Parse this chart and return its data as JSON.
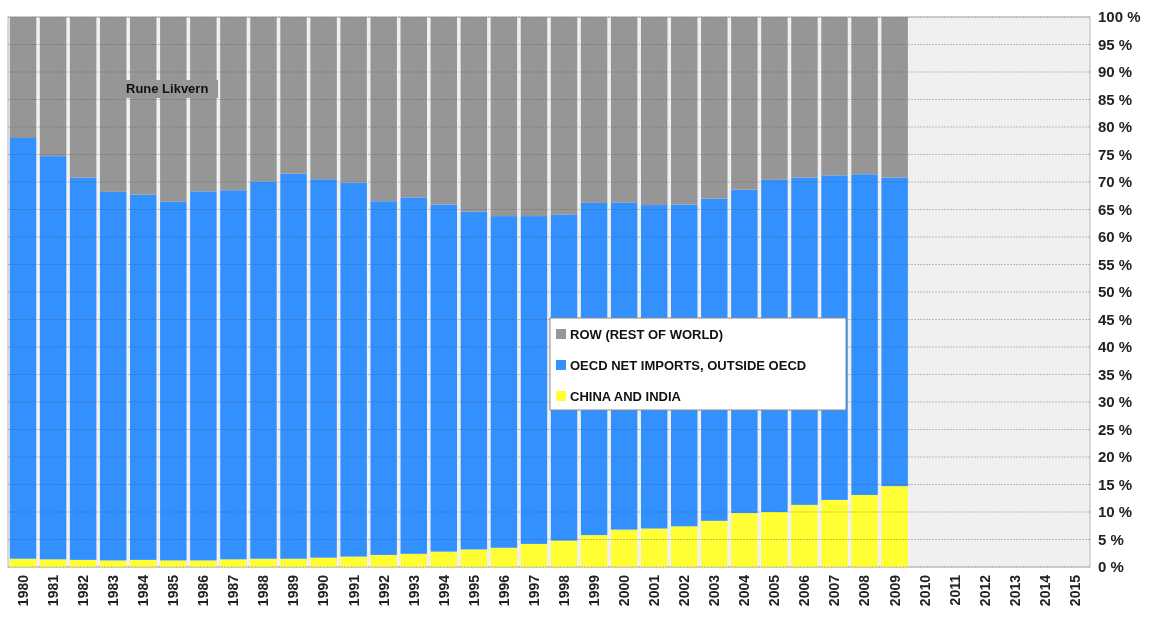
{
  "chart_data": {
    "type": "bar",
    "stacked": true,
    "categories": [
      "1980",
      "1981",
      "1982",
      "1983",
      "1984",
      "1985",
      "1986",
      "1987",
      "1988",
      "1989",
      "1990",
      "1991",
      "1992",
      "1993",
      "1994",
      "1995",
      "1996",
      "1997",
      "1998",
      "1999",
      "2000",
      "2001",
      "2002",
      "2003",
      "2004",
      "2005",
      "2006",
      "2007",
      "2008",
      "2009",
      "2010",
      "2011",
      "2012",
      "2013",
      "2014",
      "2015"
    ],
    "series": [
      {
        "name": "CHINA AND INDIA",
        "color": "#ffff33",
        "values": [
          1.5,
          1.4,
          1.3,
          1.2,
          1.3,
          1.2,
          1.2,
          1.4,
          1.5,
          1.5,
          1.7,
          1.9,
          2.2,
          2.4,
          2.8,
          3.2,
          3.5,
          4.2,
          4.8,
          5.8,
          6.8,
          7.0,
          7.4,
          8.4,
          9.8,
          10.0,
          11.3,
          12.2,
          13.1,
          14.7,
          null,
          null,
          null,
          null,
          null,
          null
        ]
      },
      {
        "name": "OECD NET IMPORTS, OUTSIDE OECD",
        "color": "#3390ff",
        "values": [
          76.5,
          73.3,
          69.5,
          67.0,
          66.4,
          65.2,
          67.1,
          67.1,
          68.6,
          70.0,
          68.8,
          68.0,
          64.3,
          64.8,
          63.1,
          61.4,
          60.3,
          59.6,
          59.3,
          60.4,
          59.5,
          58.8,
          58.5,
          58.6,
          58.8,
          60.4,
          59.5,
          59.0,
          58.3,
          56.1,
          null,
          null,
          null,
          null,
          null,
          null
        ]
      },
      {
        "name": "ROW (REST OF WORLD)",
        "color": "#969696",
        "values": [
          22.0,
          25.3,
          29.2,
          31.8,
          32.3,
          33.6,
          31.7,
          31.5,
          29.9,
          28.5,
          29.5,
          30.1,
          33.5,
          32.8,
          34.1,
          35.4,
          36.2,
          36.2,
          35.9,
          33.8,
          33.7,
          34.2,
          34.1,
          33.0,
          31.4,
          29.6,
          29.2,
          28.8,
          28.6,
          29.2,
          null,
          null,
          null,
          null,
          null,
          null
        ]
      }
    ],
    "ylim": [
      0,
      100
    ],
    "yticks": [
      {
        "value": 0,
        "label": "0 %"
      },
      {
        "value": 5,
        "label": "5 %"
      },
      {
        "value": 10,
        "label": "10 %"
      },
      {
        "value": 15,
        "label": "15 %"
      },
      {
        "value": 20,
        "label": "20 %"
      },
      {
        "value": 25,
        "label": "25 %"
      },
      {
        "value": 30,
        "label": "30 %"
      },
      {
        "value": 35,
        "label": "35 %"
      },
      {
        "value": 40,
        "label": "40 %"
      },
      {
        "value": 45,
        "label": "45 %"
      },
      {
        "value": 50,
        "label": "50 %"
      },
      {
        "value": 55,
        "label": "55 %"
      },
      {
        "value": 60,
        "label": "60 %"
      },
      {
        "value": 65,
        "label": "65 %"
      },
      {
        "value": 70,
        "label": "70 %"
      },
      {
        "value": 75,
        "label": "75 %"
      },
      {
        "value": 80,
        "label": "80 %"
      },
      {
        "value": 85,
        "label": "85 %"
      },
      {
        "value": 90,
        "label": "90 %"
      },
      {
        "value": 95,
        "label": "95 %"
      },
      {
        "value": 100,
        "label": "100 %"
      }
    ],
    "grid": "y",
    "legend": "center",
    "annotations": [
      "Rune Likvern"
    ]
  }
}
